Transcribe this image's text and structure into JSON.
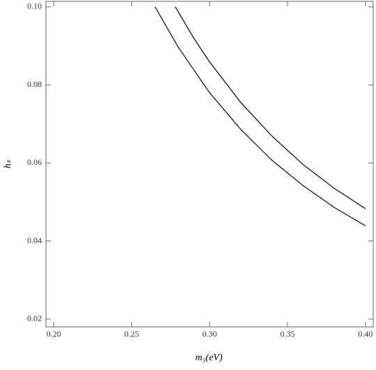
{
  "chart_data": {
    "type": "line",
    "xlabel": "m₃(eV)",
    "ylabel": "hₛ",
    "xlim": [
      0.195,
      0.405
    ],
    "ylim": [
      0.018,
      0.1014
    ],
    "xticks": [
      {
        "value": 0.2,
        "label": "0.20"
      },
      0.25,
      {
        "value": 0.3,
        "label": "0.30"
      },
      0.35,
      {
        "value": 0.4,
        "label": "0.40"
      }
    ],
    "yticks": [
      0.02,
      0.04,
      0.06,
      0.08,
      {
        "value": 0.1,
        "label": "0.10"
      }
    ],
    "series": [
      {
        "color": "#000000",
        "dashed": false,
        "x": [
          0.278,
          0.29,
          0.3,
          0.32,
          0.34,
          0.36,
          0.38,
          0.4
        ],
        "values": [
          0.1,
          0.0919,
          0.0859,
          0.0755,
          0.0669,
          0.0596,
          0.0535,
          0.0483
        ]
      },
      {
        "color": "#1f1fa8",
        "dashed": true,
        "x": [
          0.265,
          0.28,
          0.3,
          0.32,
          0.34,
          0.36,
          0.38,
          0.4
        ],
        "values": [
          0.1,
          0.0896,
          0.078,
          0.0686,
          0.0607,
          0.0542,
          0.0486,
          0.0439
        ]
      }
    ]
  }
}
